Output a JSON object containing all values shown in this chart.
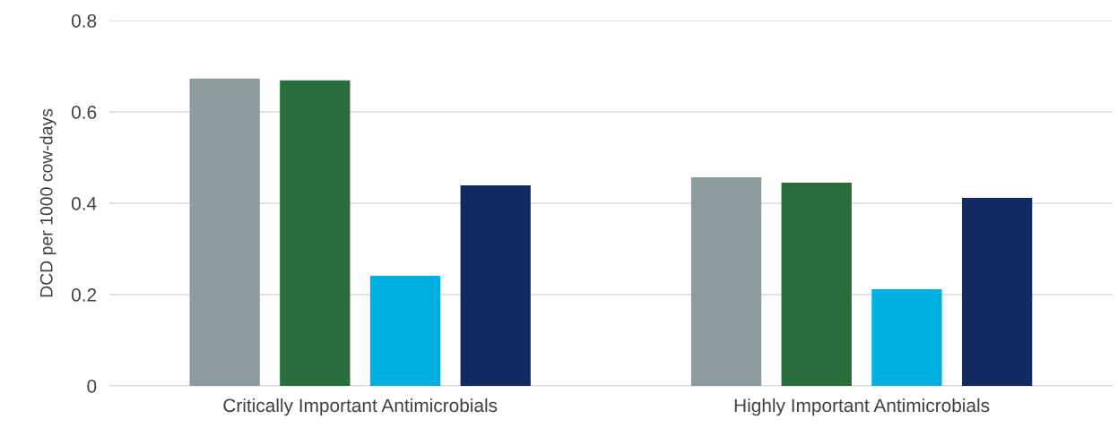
{
  "chart_data": {
    "type": "bar",
    "ylabel": "DCD per 1000 cow-days",
    "categories": [
      "Critically Important Antimicrobials",
      "Highly Important Antimicrobials"
    ],
    "series": [
      {
        "color": "#8c9c9d",
        "values": [
          0.673,
          0.457
        ]
      },
      {
        "color": "#286e3c",
        "values": [
          0.669,
          0.445
        ]
      },
      {
        "color": "#00b0e0",
        "values": [
          0.241,
          0.212
        ]
      },
      {
        "color": "#0f2b61",
        "values": [
          0.439,
          0.412
        ]
      }
    ],
    "ylim": [
      0,
      0.8
    ],
    "yticks": [
      {
        "value": 0,
        "label": "0"
      },
      0.2,
      0.4,
      0.6,
      0.8
    ],
    "grid": "y",
    "legend": false
  }
}
